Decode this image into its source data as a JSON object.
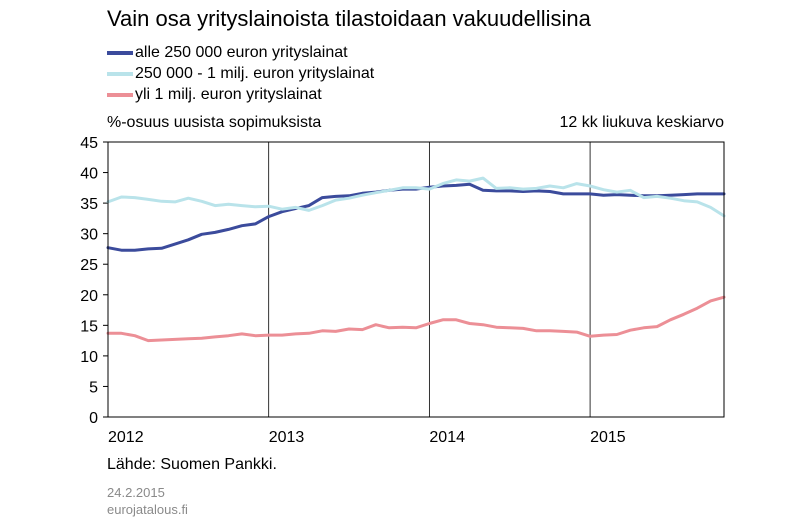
{
  "chart_data": {
    "type": "line",
    "title": "Vain osa yrityslainoista tilastoidaan vakuudellisina",
    "ylabel": "%-osuus uusista sopimuksista",
    "note": "12 kk liukuva keskiarvo",
    "ylim": [
      0,
      45
    ],
    "yticks": [
      0,
      5,
      10,
      15,
      20,
      25,
      30,
      35,
      40,
      45
    ],
    "xlim": [
      "2012-01",
      "2015-11"
    ],
    "xticks": [
      {
        "label": "2012",
        "date": "2012-01"
      },
      {
        "label": "2013",
        "date": "2013-01"
      },
      {
        "label": "2014",
        "date": "2014-01"
      },
      {
        "label": "2015",
        "date": "2015-01"
      }
    ],
    "grid": "vertical at year boundaries",
    "legend_position": "top-left",
    "x": [
      "2012-01",
      "2012-02",
      "2012-03",
      "2012-04",
      "2012-05",
      "2012-06",
      "2012-07",
      "2012-08",
      "2012-09",
      "2012-10",
      "2012-11",
      "2012-12",
      "2013-01",
      "2013-02",
      "2013-03",
      "2013-04",
      "2013-05",
      "2013-06",
      "2013-07",
      "2013-08",
      "2013-09",
      "2013-10",
      "2013-11",
      "2013-12",
      "2014-01",
      "2014-02",
      "2014-03",
      "2014-04",
      "2014-05",
      "2014-06",
      "2014-07",
      "2014-08",
      "2014-09",
      "2014-10",
      "2014-11",
      "2014-12",
      "2015-01",
      "2015-02",
      "2015-03",
      "2015-04",
      "2015-05",
      "2015-06",
      "2015-07",
      "2015-08",
      "2015-09",
      "2015-10",
      "2015-11"
    ],
    "series": [
      {
        "name": "alle 250 000 euron yrityslainat",
        "color": "#3b4b9c",
        "values": [
          27.7,
          27.3,
          27.3,
          27.5,
          27.6,
          28.3,
          29.0,
          29.9,
          30.2,
          30.7,
          31.3,
          31.6,
          32.8,
          33.6,
          34.1,
          34.6,
          35.9,
          36.1,
          36.2,
          36.6,
          36.8,
          37.1,
          37.3,
          37.3,
          37.6,
          37.8,
          37.9,
          38.1,
          37.1,
          37.0,
          37.0,
          36.9,
          37.0,
          36.9,
          36.5,
          36.5,
          36.5,
          36.3,
          36.4,
          36.3,
          36.2,
          36.2,
          36.3,
          36.4,
          36.5,
          36.5,
          36.5
        ]
      },
      {
        "name": "250 000 - 1 milj. euron yrityslainat",
        "color": "#b9e3ea",
        "values": [
          35.2,
          36.0,
          35.9,
          35.6,
          35.3,
          35.2,
          35.8,
          35.3,
          34.6,
          34.8,
          34.6,
          34.4,
          34.5,
          34.0,
          34.3,
          33.8,
          34.6,
          35.5,
          35.8,
          36.3,
          36.7,
          37.1,
          37.5,
          37.5,
          37.3,
          38.2,
          38.8,
          38.6,
          39.1,
          37.4,
          37.5,
          37.3,
          37.4,
          37.8,
          37.5,
          38.2,
          37.8,
          37.2,
          36.8,
          37.1,
          35.9,
          36.1,
          35.8,
          35.4,
          35.2,
          34.3,
          32.9
        ]
      },
      {
        "name": "yli 1 milj. euron yrityslainat",
        "color": "#ec8f96",
        "values": [
          13.7,
          13.7,
          13.3,
          12.5,
          12.6,
          12.7,
          12.8,
          12.9,
          13.1,
          13.3,
          13.6,
          13.3,
          13.4,
          13.4,
          13.6,
          13.7,
          14.1,
          14.0,
          14.4,
          14.3,
          15.1,
          14.6,
          14.7,
          14.6,
          15.3,
          15.9,
          15.9,
          15.3,
          15.1,
          14.7,
          14.6,
          14.5,
          14.1,
          14.1,
          14.0,
          13.9,
          13.2,
          13.4,
          13.5,
          14.2,
          14.6,
          14.8,
          15.9,
          16.8,
          17.8,
          19.0,
          19.6
        ]
      }
    ]
  },
  "footer": {
    "source": "Lähde: Suomen Pankki.",
    "date": "24.2.2015",
    "site": "eurojatalous.fi"
  }
}
